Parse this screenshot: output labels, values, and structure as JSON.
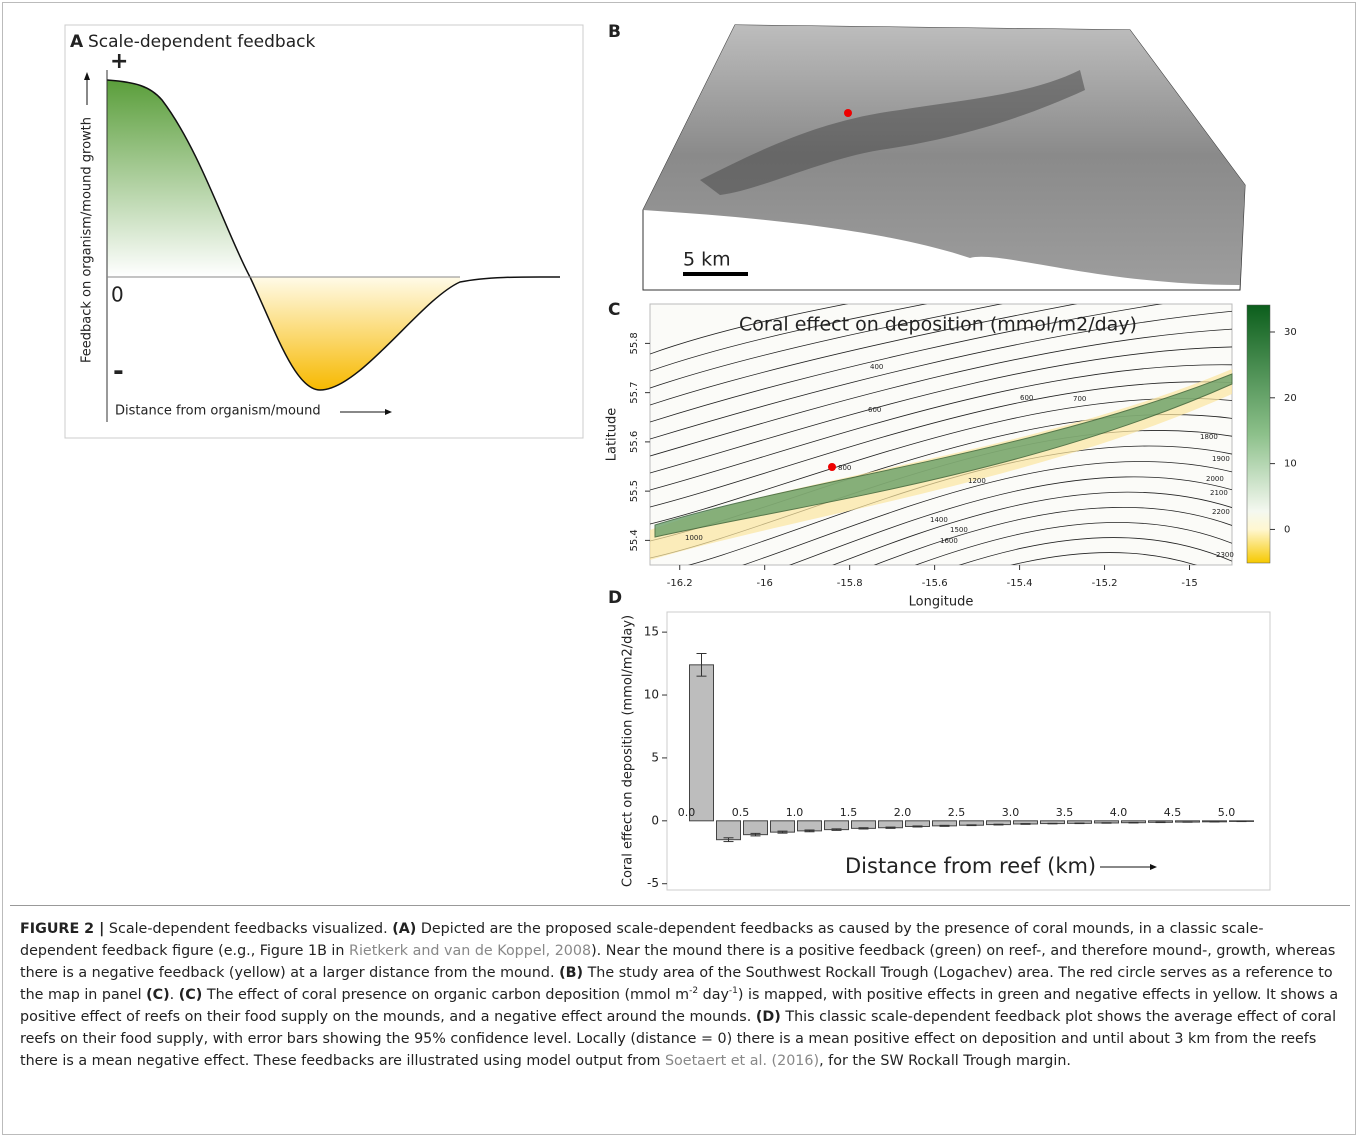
{
  "panels": {
    "a": {
      "letter": "A",
      "title": "Scale-dependent feedback",
      "ylabel": "Feedback on organism/mound growth",
      "xlabel": "Distance from organism/mound",
      "plus": "+",
      "zero": "0",
      "minus": "-"
    },
    "b": {
      "letter": "B",
      "scale": "5 km"
    }
  },
  "chart_data": [
    {
      "type": "map",
      "letter": "C",
      "title": "Coral effect on deposition (mmol/m2/day)",
      "x_label": "Longitude",
      "y_label": "Latitude",
      "xlim": [
        -16.27,
        -14.9
      ],
      "xticks": [
        -16.2,
        -16.0,
        -15.8,
        -15.6,
        -15.4,
        -15.2,
        -15.0
      ],
      "ylim": [
        55.35,
        55.88
      ],
      "yticks": [
        55.4,
        55.5,
        55.6,
        55.7,
        55.8
      ],
      "clim": [
        -5.1,
        34.1
      ],
      "cticks": [
        0,
        10,
        20,
        30
      ],
      "contour_labels": [
        400,
        600,
        600,
        700,
        800,
        1000,
        1200,
        1400,
        1500,
        1600,
        1800,
        1900,
        2000,
        2100,
        2200,
        2300
      ]
    },
    {
      "type": "bar",
      "letter": "D",
      "y_label": "Coral effect on deposition (mmol/m2/day)",
      "annotation": "Distance from reef (km)",
      "categories": [
        "0.0",
        null,
        "0.5",
        null,
        "1.0",
        null,
        "1.5",
        null,
        "2.0",
        null,
        "2.5",
        null,
        "3.0",
        null,
        "3.5",
        null,
        "4.0",
        null,
        "4.5",
        null,
        "5.0"
      ],
      "values": [
        12.4,
        -1.5,
        -1.1,
        -0.9,
        -0.8,
        -0.7,
        -0.6,
        -0.55,
        -0.45,
        -0.4,
        -0.35,
        -0.3,
        -0.25,
        -0.22,
        -0.2,
        -0.17,
        -0.15,
        -0.12,
        -0.1,
        -0.08,
        -0.05
      ],
      "errors": [
        0.9,
        0.15,
        0.1,
        0.08,
        0.07,
        0.06,
        0.05,
        0.05,
        0.04,
        0.04,
        0.03,
        0.03,
        0.03,
        0.02,
        0.02,
        0.02,
        0.02,
        0.02,
        0.01,
        0.01,
        0.01
      ],
      "color": "#bdbdbd",
      "ylim": [
        -5.5,
        16.6
      ],
      "yticks": [
        -5,
        0,
        5,
        10,
        15
      ]
    }
  ],
  "caption": [
    {
      "text": "FIGURE 2 |",
      "style": "bold"
    },
    {
      "text": " Scale-dependent feedbacks visualized. "
    },
    {
      "text": "(A)",
      "style": "bold"
    },
    {
      "text": " Depicted are the proposed scale-dependent feedbacks as caused by the presence of coral mounds, in a classic scale-dependent feedback figure (e.g., Figure 1B in "
    },
    {
      "text": "Rietkerk and van de Koppel, 2008",
      "style": "link"
    },
    {
      "text": "). Near the mound there is a positive feedback (green) on reef-, and therefore mound-, growth, whereas there is a negative feedback (yellow) at a larger distance from the mound. "
    },
    {
      "text": "(B)",
      "style": "bold"
    },
    {
      "text": " The study area of the Southwest Rockall Trough (Logachev) area. The red circle serves as a reference to the map in panel "
    },
    {
      "text": "(C)",
      "style": "bold"
    },
    {
      "text": ". "
    },
    {
      "text": "(C)",
      "style": "bold"
    },
    {
      "text": " The effect of coral presence on organic carbon deposition (mmol m"
    },
    {
      "text": "-2",
      "style": "sup"
    },
    {
      "text": " day"
    },
    {
      "text": "-1",
      "style": "sup"
    },
    {
      "text": ") is mapped, with positive effects in green and negative effects in yellow. It shows a positive effect of reefs on their food supply on the mounds, and a negative effect around the mounds. "
    },
    {
      "text": "(D)",
      "style": "bold"
    },
    {
      "text": " This classic scale-dependent feedback plot shows the average effect of coral reefs on their food supply, with error bars showing the 95% confidence level. Locally (distance = 0) there is a mean positive effect on deposition and until about 3 km from the reefs there is a mean negative effect. These feedbacks are illustrated using model output from "
    },
    {
      "text": "Soetaert et al. (2016)",
      "style": "link"
    },
    {
      "text": ", for the SW Rockall Trough margin."
    }
  ]
}
